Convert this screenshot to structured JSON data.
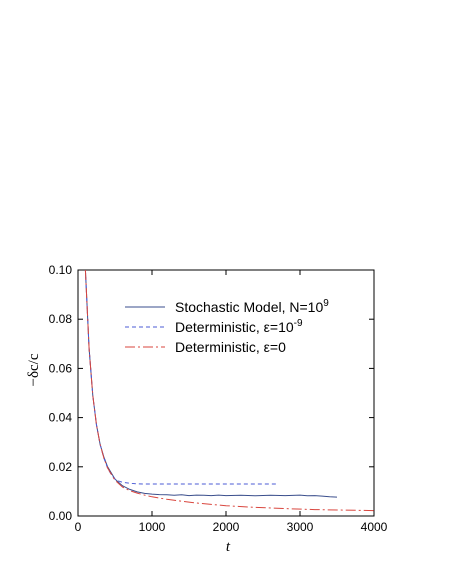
{
  "chart_data": {
    "type": "line",
    "xlabel": "t",
    "ylabel": "−δc/c",
    "xlim": [
      0,
      4000
    ],
    "ylim": [
      0,
      0.1
    ],
    "x_ticks": [
      0,
      1000,
      2000,
      3000,
      4000
    ],
    "x_tick_labels": [
      "0",
      "1000",
      "2000",
      "3000",
      "4000"
    ],
    "y_ticks": [
      0,
      0.02,
      0.04,
      0.06,
      0.08,
      0.1
    ],
    "y_tick_labels": [
      "0.00",
      "0.02",
      "0.04",
      "0.06",
      "0.08",
      "0.10"
    ],
    "grid": false,
    "legend_position": "top-right",
    "series": [
      {
        "name": "Stochastic Model, N=10^9",
        "legend_parts": {
          "main": "Stochastic Model, N=10",
          "sup": "9"
        },
        "color": "#3a4e8c",
        "style": "solid",
        "x": [
          100,
          150,
          200,
          250,
          300,
          350,
          400,
          500,
          600,
          700,
          800,
          900,
          1000,
          1100,
          1200,
          1300,
          1400,
          1500,
          1600,
          1700,
          1800,
          1900,
          2000,
          2200,
          2400,
          2600,
          2800,
          3000,
          3100,
          3200,
          3300,
          3400,
          3500
        ],
        "y": [
          0.1,
          0.068,
          0.049,
          0.037,
          0.029,
          0.024,
          0.02,
          0.015,
          0.0123,
          0.0108,
          0.0098,
          0.0092,
          0.0089,
          0.0087,
          0.0086,
          0.0084,
          0.0086,
          0.0083,
          0.0085,
          0.0084,
          0.0083,
          0.0085,
          0.0083,
          0.0084,
          0.0082,
          0.0084,
          0.0083,
          0.0085,
          0.0082,
          0.0083,
          0.0081,
          0.0078,
          0.0077
        ]
      },
      {
        "name": "Deterministic, ε=10^-9",
        "legend_parts": {
          "main": "Deterministic, ε=10",
          "sup": "-9"
        },
        "color": "#4b5bd6",
        "style": "dashed",
        "x": [
          100,
          150,
          200,
          250,
          300,
          350,
          400,
          450,
          500,
          550,
          600,
          700,
          800,
          900,
          1000,
          1500,
          2000,
          2500,
          2700
        ],
        "y": [
          0.1,
          0.068,
          0.049,
          0.037,
          0.029,
          0.0235,
          0.0195,
          0.0168,
          0.015,
          0.0142,
          0.0137,
          0.0133,
          0.0131,
          0.013,
          0.013,
          0.013,
          0.013,
          0.013,
          0.013
        ]
      },
      {
        "name": "Deterministic, ε=0",
        "legend_parts": {
          "main": "Deterministic, ε=0",
          "sup": ""
        },
        "color": "#d9463e",
        "style": "dashdot",
        "x": [
          100,
          150,
          200,
          250,
          300,
          350,
          400,
          500,
          600,
          700,
          800,
          900,
          1000,
          1200,
          1400,
          1600,
          1800,
          2000,
          2400,
          2800,
          3200,
          3600,
          4000
        ],
        "y": [
          0.1,
          0.068,
          0.049,
          0.037,
          0.029,
          0.0235,
          0.0195,
          0.0145,
          0.0118,
          0.0103,
          0.0093,
          0.0085,
          0.0078,
          0.0068,
          0.006,
          0.0053,
          0.0047,
          0.0042,
          0.0035,
          0.003,
          0.0026,
          0.0024,
          0.0022
        ]
      }
    ]
  }
}
